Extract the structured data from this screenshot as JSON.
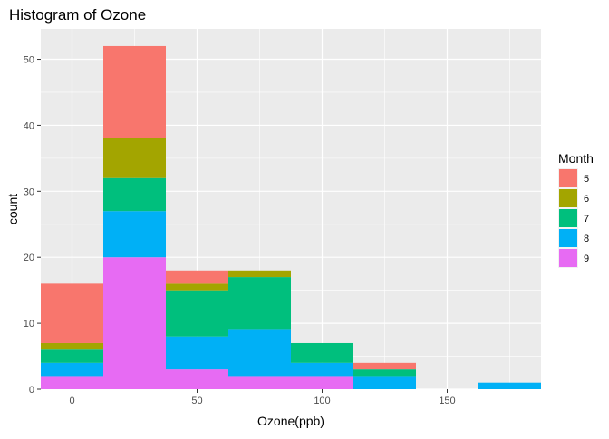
{
  "chart_data": {
    "type": "bar",
    "subtype": "stacked-histogram",
    "title": "Histogram of Ozone",
    "xlabel": "Ozone(ppb)",
    "ylabel": "count",
    "xlim": [
      -12.5,
      187.5
    ],
    "ylim": [
      0,
      54.6
    ],
    "x_ticks": [
      0,
      50,
      100,
      150
    ],
    "y_ticks": [
      0,
      10,
      20,
      30,
      40,
      50
    ],
    "grid": true,
    "legend_position": "right",
    "legend_title": "Month",
    "bins": [
      {
        "x0": -12.5,
        "x1": 12.5
      },
      {
        "x0": 12.5,
        "x1": 37.5
      },
      {
        "x0": 37.5,
        "x1": 62.5
      },
      {
        "x0": 62.5,
        "x1": 87.5
      },
      {
        "x0": 87.5,
        "x1": 112.5
      },
      {
        "x0": 112.5,
        "x1": 137.5
      },
      {
        "x0": 137.5,
        "x1": 162.5
      },
      {
        "x0": 162.5,
        "x1": 187.5
      }
    ],
    "series": [
      {
        "name": "9",
        "color": "#E76BF3",
        "values": [
          2,
          20,
          3,
          2,
          2,
          0,
          0,
          0
        ]
      },
      {
        "name": "8",
        "color": "#00B0F6",
        "values": [
          2,
          7,
          5,
          7,
          2,
          2,
          0,
          1
        ]
      },
      {
        "name": "7",
        "color": "#00BF7D",
        "values": [
          2,
          5,
          7,
          8,
          3,
          1,
          0,
          0
        ]
      },
      {
        "name": "6",
        "color": "#A3A500",
        "values": [
          1,
          6,
          1,
          1,
          0,
          0,
          0,
          0
        ]
      },
      {
        "name": "5",
        "color": "#F8766D",
        "values": [
          9,
          14,
          2,
          0,
          0,
          1,
          0,
          0
        ]
      }
    ],
    "legend_order": [
      "5",
      "6",
      "7",
      "8",
      "9"
    ]
  }
}
